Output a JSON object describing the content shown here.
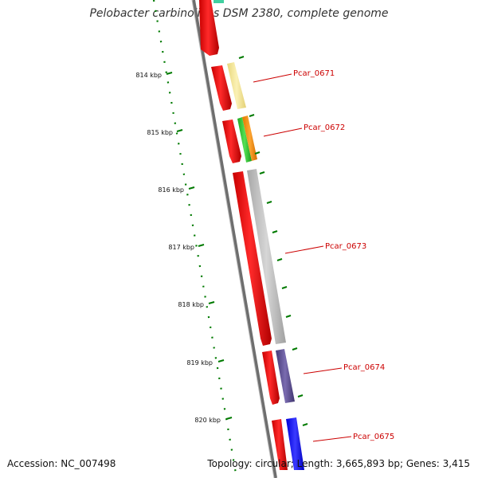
{
  "title": "Pelobacter carbinolicus DSM 2380, complete genome",
  "footer": {
    "accession": "Accession: NC_007498",
    "summary": "Topology: circular; Length: 3,665,893 bp; Genes: 3,415"
  },
  "ticks": [
    "814 kbp",
    "815 kbp",
    "816 kbp",
    "817 kbp",
    "818 kbp",
    "819 kbp",
    "820 kbp"
  ],
  "genes": [
    "Pcar_0671",
    "Pcar_0672",
    "Pcar_0673",
    "Pcar_0674",
    "Pcar_0675"
  ],
  "colors": {
    "cds": "#ff0000",
    "backbone": "#808080",
    "scale": "#007a00",
    "gene_label": "#cc0000",
    "Pcar_0671": "#f5e9a0",
    "Pcar_0672": [
      "#33cc33",
      "#ff8c00"
    ],
    "Pcar_0673": "#bdbdbd",
    "Pcar_0674": "#5a4a8c",
    "Pcar_0675": "#1010ff"
  }
}
